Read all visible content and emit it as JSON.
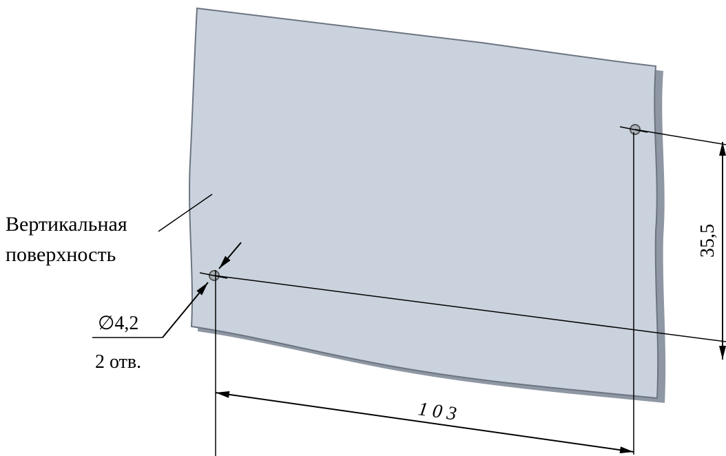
{
  "labels": {
    "surface_line1": "Вертикальная",
    "surface_line2": "поверхность",
    "hole_diameter": "∅4,2",
    "hole_count": "2 отв.",
    "vertical_dim": "35,5",
    "horizontal_dim": "1 0 3"
  },
  "colors": {
    "panel_fill": "#c9d2dd",
    "panel_stroke": "#6b7480",
    "line": "#000000",
    "hole_fill": "#aab2bc"
  }
}
